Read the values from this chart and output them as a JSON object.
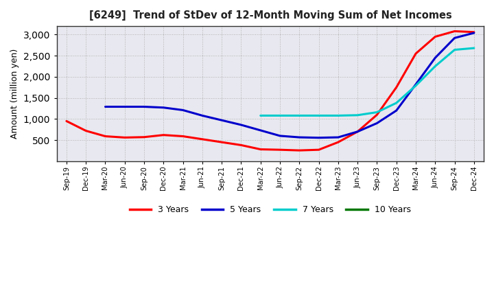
{
  "title": "[6249]  Trend of StDev of 12-Month Moving Sum of Net Incomes",
  "ylabel": "Amount (million yen)",
  "background_color": "#ffffff",
  "plot_bg_color": "#e8e8f0",
  "grid_color": "#aaaaaa",
  "x_labels": [
    "Sep-19",
    "Dec-19",
    "Mar-20",
    "Jun-20",
    "Sep-20",
    "Dec-20",
    "Mar-21",
    "Jun-21",
    "Sep-21",
    "Dec-21",
    "Mar-22",
    "Jun-22",
    "Sep-22",
    "Dec-22",
    "Mar-23",
    "Jun-23",
    "Sep-23",
    "Dec-23",
    "Mar-24",
    "Jun-24",
    "Sep-24",
    "Dec-24"
  ],
  "series": {
    "3 Years": {
      "color": "#ff0000",
      "data": [
        950,
        720,
        590,
        560,
        570,
        620,
        590,
        520,
        450,
        380,
        280,
        270,
        255,
        270,
        450,
        700,
        1100,
        1750,
        2550,
        2950,
        3080,
        3060
      ]
    },
    "5 Years": {
      "color": "#0000cc",
      "data": [
        null,
        null,
        1290,
        1290,
        1290,
        1270,
        1210,
        1080,
        970,
        860,
        730,
        600,
        565,
        555,
        565,
        700,
        900,
        1200,
        1820,
        2450,
        2920,
        3040
      ]
    },
    "7 Years": {
      "color": "#00cccc",
      "data": [
        null,
        null,
        null,
        null,
        null,
        null,
        null,
        null,
        null,
        null,
        1080,
        1080,
        1080,
        1080,
        1080,
        1090,
        1160,
        1380,
        1790,
        2250,
        2640,
        2680
      ]
    },
    "10 Years": {
      "color": "#007700",
      "data": [
        null,
        null,
        null,
        null,
        null,
        null,
        null,
        null,
        null,
        null,
        null,
        null,
        null,
        null,
        null,
        null,
        null,
        null,
        null,
        null,
        null,
        null
      ]
    }
  },
  "ylim": [
    0,
    3200
  ],
  "yticks": [
    500,
    1000,
    1500,
    2000,
    2500,
    3000
  ],
  "legend_order": [
    "3 Years",
    "5 Years",
    "7 Years",
    "10 Years"
  ]
}
